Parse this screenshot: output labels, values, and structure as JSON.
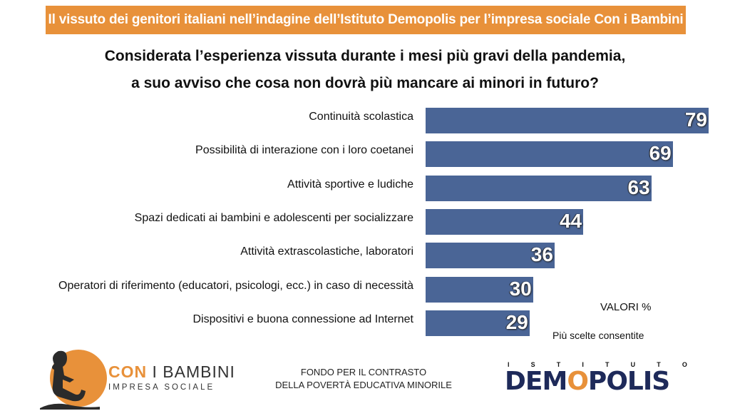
{
  "header": {
    "banner": "Il vissuto dei genitori italiani nell’indagine dell’Istituto Demopolis per l’impresa sociale Con i Bambini",
    "question_line1": "Considerata l’esperienza vissuta durante i mesi più gravi della pandemia,",
    "question_line2": "a suo avviso che cosa non dovrà più mancare ai minori in futuro?"
  },
  "chart_data": {
    "type": "bar",
    "orientation": "horizontal",
    "categories": [
      "Continuità scolastica",
      "Possibilità di interazione con i loro coetanei",
      "Attività sportive e ludiche",
      "Spazi dedicati ai bambini e adolescenti per socializzare",
      "Attività extrascolastiche, laboratori",
      "Operatori di riferimento (educatori, psicologi, ecc.) in caso di necessità",
      "Dispositivi e buona connessione ad Internet"
    ],
    "values": [
      79,
      69,
      63,
      44,
      36,
      30,
      29
    ],
    "value_labels": [
      "79",
      "69",
      "63",
      "44",
      "36",
      "30",
      "29"
    ],
    "bar_color": "#4a6596",
    "xlim": [
      0,
      79
    ]
  },
  "notes": {
    "unit": "VALORI %",
    "multi": "Più scelte consentite"
  },
  "footer": {
    "logo_left_prefix": "CON",
    "logo_left_name": "I BAMBINI",
    "logo_left_sub": "IMPRESA SOCIALE",
    "fondo_line1": "FONDO PER IL CONTRASTO",
    "fondo_line2": "DELLA POVERTÀ EDUCATIVA MINORILE",
    "right_logo_top": "ISTITUTO",
    "right_logo_main": "DEMOPOLIS"
  },
  "colors": {
    "accent": "#e8913a",
    "bar": "#4a6596",
    "brand_dark": "#1e2a5a"
  }
}
